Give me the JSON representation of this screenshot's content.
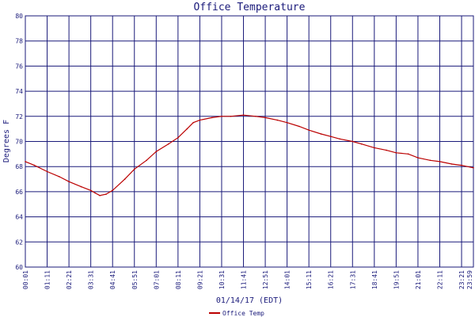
{
  "chart_data": {
    "type": "line",
    "title": "Office Temperature",
    "xlabel": "01/14/17 (EDT)",
    "ylabel": "Degrees F",
    "ylim": [
      60,
      80
    ],
    "yticks": [
      "60",
      "62",
      "64",
      "66",
      "68",
      "70",
      "72",
      "74",
      "76",
      "78",
      "80"
    ],
    "xlim": [
      "00:01",
      "23:59"
    ],
    "xticks": [
      "00:01",
      "01:11",
      "02:21",
      "03:31",
      "04:41",
      "05:51",
      "07:01",
      "08:11",
      "09:21",
      "10:31",
      "11:41",
      "12:51",
      "14:01",
      "15:11",
      "16:21",
      "17:31",
      "18:41",
      "19:51",
      "21:01",
      "22:11",
      "23:21",
      "23:59"
    ],
    "grid": true,
    "legend_position": "bottom-left",
    "colors": {
      "series": "#bb0000",
      "axis": "#1a1a7a",
      "grid": "#1a1a7a"
    },
    "series": [
      {
        "name": "Office Temp",
        "x": [
          "00:01",
          "00:30",
          "01:11",
          "01:50",
          "02:21",
          "03:00",
          "03:31",
          "03:45",
          "04:00",
          "04:20",
          "04:41",
          "05:20",
          "05:51",
          "06:30",
          "07:01",
          "07:40",
          "08:11",
          "08:40",
          "09:00",
          "09:21",
          "10:00",
          "10:31",
          "11:00",
          "11:41",
          "12:20",
          "12:51",
          "13:30",
          "14:01",
          "14:40",
          "15:11",
          "15:50",
          "16:21",
          "16:50",
          "17:31",
          "18:00",
          "18:41",
          "19:20",
          "19:51",
          "20:30",
          "21:01",
          "21:40",
          "22:11",
          "22:50",
          "23:21",
          "23:59"
        ],
        "values": [
          68.4,
          68.1,
          67.6,
          67.2,
          66.8,
          66.4,
          66.1,
          65.9,
          65.7,
          65.8,
          66.1,
          67.0,
          67.8,
          68.5,
          69.2,
          69.8,
          70.3,
          71.0,
          71.5,
          71.7,
          71.9,
          72.0,
          72.0,
          72.1,
          72.0,
          71.9,
          71.7,
          71.5,
          71.2,
          70.9,
          70.6,
          70.4,
          70.2,
          70.0,
          69.8,
          69.5,
          69.3,
          69.1,
          69.0,
          68.7,
          68.5,
          68.4,
          68.2,
          68.1,
          67.9
        ]
      }
    ]
  }
}
